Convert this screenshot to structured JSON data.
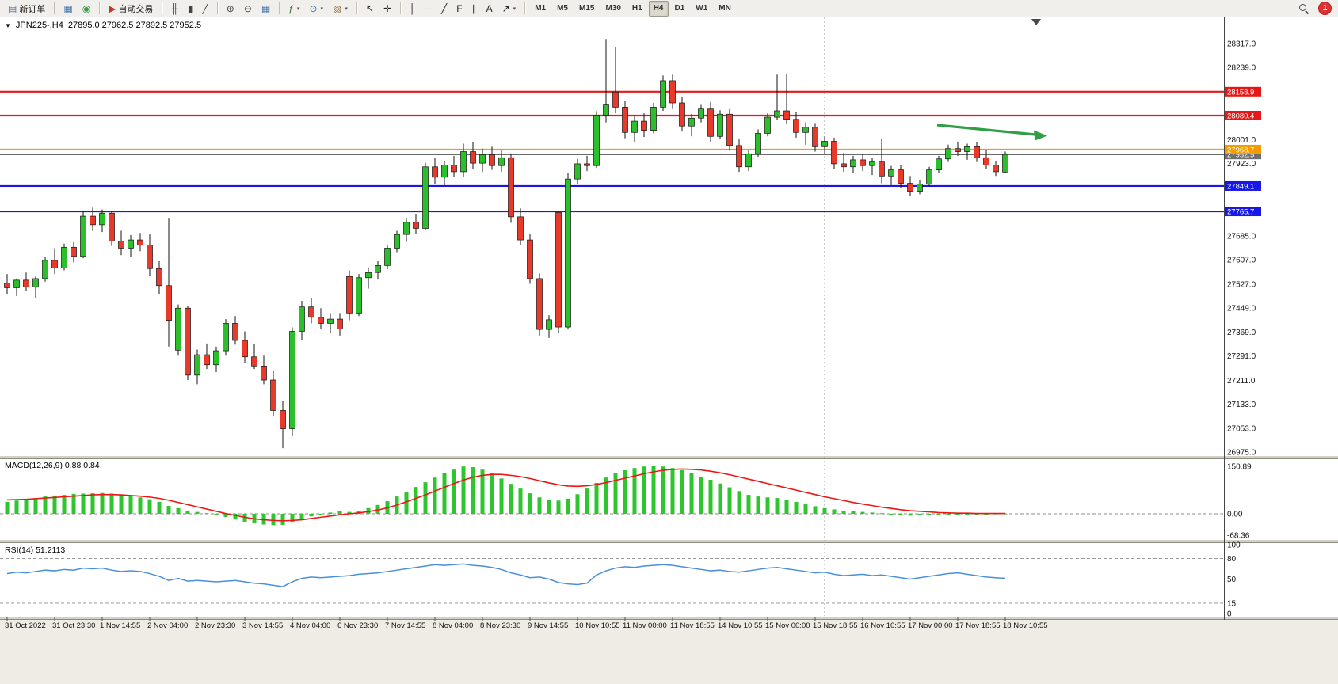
{
  "toolbar": {
    "notification_count": "1",
    "timeframes": [
      "M1",
      "M5",
      "M15",
      "M30",
      "H1",
      "H4",
      "D1",
      "W1",
      "MN"
    ],
    "active_timeframe": "H4",
    "groups": [
      {
        "name": "order-group",
        "buttons": [
          {
            "name": "new-order-button",
            "icon": "new-order-icon",
            "glyph": "▤",
            "color": "#4a76a8",
            "label": "新订单"
          }
        ]
      },
      {
        "name": "window-group",
        "buttons": [
          {
            "name": "new-chart-button",
            "icon": "chart-window-icon",
            "glyph": "▦",
            "color": "#4a76a8"
          },
          {
            "name": "profiles-button",
            "icon": "profiles-icon",
            "glyph": "◉",
            "color": "#3f9b4f"
          }
        ]
      },
      {
        "name": "trading-group",
        "buttons": [
          {
            "name": "auto-trading-button",
            "icon": "auto-trading-icon",
            "glyph": "▶",
            "color": "#c0392b",
            "label": "自动交易"
          }
        ]
      },
      {
        "name": "chart-type-group",
        "buttons": [
          {
            "name": "bar-chart-button",
            "icon": "bar-chart-icon",
            "glyph": "╫",
            "color": "#444444"
          },
          {
            "name": "candlestick-button",
            "icon": "candlestick-icon",
            "glyph": "▮",
            "color": "#444444"
          },
          {
            "name": "line-chart-button",
            "icon": "line-chart-icon",
            "glyph": "╱",
            "color": "#444444"
          }
        ]
      },
      {
        "name": "zoom-group",
        "buttons": [
          {
            "name": "zoom-in-button",
            "icon": "zoom-in-icon",
            "glyph": "⊕",
            "color": "#444444"
          },
          {
            "name": "zoom-out-button",
            "icon": "zoom-out-icon",
            "glyph": "⊖",
            "color": "#444444"
          },
          {
            "name": "tile-windows-button",
            "icon": "tile-windows-icon",
            "glyph": "▦",
            "color": "#4a76a8"
          }
        ]
      },
      {
        "name": "insert-group",
        "buttons": [
          {
            "name": "indicators-button",
            "icon": "indicators-icon",
            "glyph": "ƒ",
            "color": "#2e7d32",
            "dropdown": true
          },
          {
            "name": "periods-button",
            "icon": "periods-icon",
            "glyph": "⊙",
            "color": "#4a76a8",
            "dropdown": true
          },
          {
            "name": "templates-button",
            "icon": "templates-icon",
            "glyph": "▧",
            "color": "#8a6d3b",
            "dropdown": true
          }
        ]
      },
      {
        "name": "cursor-group",
        "buttons": [
          {
            "name": "cursor-button",
            "icon": "cursor-icon",
            "glyph": "↖",
            "color": "#222222"
          },
          {
            "name": "crosshair-button",
            "icon": "crosshair-icon",
            "glyph": "✛",
            "color": "#222222"
          }
        ]
      },
      {
        "name": "objects-group",
        "buttons": [
          {
            "name": "vertical-line-button",
            "icon": "vertical-line-icon",
            "glyph": "│",
            "color": "#222222"
          },
          {
            "name": "horizontal-line-button",
            "icon": "horizontal-line-icon",
            "glyph": "─",
            "color": "#222222"
          },
          {
            "name": "trendline-button",
            "icon": "trendline-icon",
            "glyph": "╱",
            "color": "#222222"
          },
          {
            "name": "fibonacci-button",
            "icon": "fibonacci-icon",
            "glyph": "F",
            "color": "#222222"
          },
          {
            "name": "channel-button",
            "icon": "channel-icon",
            "glyph": "∥",
            "color": "#222222"
          },
          {
            "name": "text-button",
            "icon": "text-icon",
            "glyph": "A",
            "color": "#222222"
          },
          {
            "name": "arrows-button",
            "icon": "arrow-objects-icon",
            "glyph": "↗",
            "color": "#222222",
            "dropdown": true
          }
        ]
      }
    ]
  },
  "chart": {
    "collapse_glyph": "▼",
    "symbol_period": "JPN225-,H4",
    "ohlc_text": "27895.0 27962.5 27892.5 27952.5",
    "bid_price": "27952.5",
    "hlines": [
      {
        "label": "28158.9",
        "color": "#e81717"
      },
      {
        "label": "28080.4",
        "color": "#e81717"
      },
      {
        "label": "27968.7",
        "color": "#f59b00"
      },
      {
        "label": "27849.1",
        "color": "#1717e8"
      },
      {
        "label": "27765.7",
        "color": "#1717e8"
      }
    ],
    "price_ticks": [
      "28317.0",
      "28239.0",
      "28001.0",
      "27923.0",
      "27685.0",
      "27607.0",
      "27527.0",
      "27449.0",
      "27369.0",
      "27291.0",
      "27211.0",
      "27133.0",
      "27053.0",
      "26975.0"
    ],
    "up_color": "#2bbf2b",
    "down_color": "#e8392a",
    "outline_color": "#151515",
    "bid_line_color": "#3a3a3a",
    "trend_arrow_color": "#2f9e44"
  },
  "chart_data": {
    "type": "candlestick",
    "symbol": "JPN225-",
    "timeframe": "H4",
    "y_axis_range": [
      26975.0,
      28317.0
    ],
    "x_labels": [
      "31 Oct 2022",
      "31 Oct 23:30",
      "1 Nov 14:55",
      "2 Nov 04:00",
      "2 Nov 23:30",
      "3 Nov 14:55",
      "4 Nov 04:00",
      "6 Nov 23:30",
      "7 Nov 14:55",
      "8 Nov 04:00",
      "8 Nov 23:30",
      "9 Nov 14:55",
      "10 Nov 10:55",
      "11 Nov 00:00",
      "11 Nov 18:55",
      "14 Nov 10:55",
      "15 Nov 00:00",
      "15 Nov 18:55",
      "16 Nov 10:55",
      "17 Nov 00:00",
      "17 Nov 18:55",
      "18 Nov 10:55"
    ],
    "ohlc": [
      [
        27530,
        27560,
        27495,
        27515
      ],
      [
        27515,
        27545,
        27488,
        27540
      ],
      [
        27540,
        27565,
        27505,
        27518
      ],
      [
        27518,
        27552,
        27480,
        27545
      ],
      [
        27545,
        27615,
        27535,
        27605
      ],
      [
        27605,
        27645,
        27560,
        27580
      ],
      [
        27580,
        27660,
        27572,
        27648
      ],
      [
        27648,
        27665,
        27598,
        27618
      ],
      [
        27618,
        27765,
        27612,
        27750
      ],
      [
        27750,
        27778,
        27702,
        27722
      ],
      [
        27722,
        27772,
        27698,
        27760
      ],
      [
        27760,
        27768,
        27652,
        27668
      ],
      [
        27668,
        27702,
        27622,
        27645
      ],
      [
        27645,
        27688,
        27616,
        27672
      ],
      [
        27672,
        27695,
        27635,
        27655
      ],
      [
        27655,
        27690,
        27555,
        27578
      ],
      [
        27578,
        27602,
        27495,
        27522
      ],
      [
        27522,
        27742,
        27322,
        27408
      ],
      [
        27310,
        27460,
        27292,
        27448
      ],
      [
        27448,
        27455,
        27212,
        27228
      ],
      [
        27228,
        27312,
        27198,
        27295
      ],
      [
        27295,
        27332,
        27248,
        27262
      ],
      [
        27262,
        27322,
        27238,
        27308
      ],
      [
        27308,
        27412,
        27292,
        27398
      ],
      [
        27398,
        27422,
        27328,
        27342
      ],
      [
        27342,
        27372,
        27268,
        27288
      ],
      [
        27288,
        27330,
        27248,
        27258
      ],
      [
        27258,
        27292,
        27198,
        27212
      ],
      [
        27212,
        27242,
        27092,
        27112
      ],
      [
        27112,
        27142,
        26988,
        27052
      ],
      [
        27052,
        27385,
        27028,
        27372
      ],
      [
        27372,
        27472,
        27342,
        27452
      ],
      [
        27452,
        27482,
        27398,
        27418
      ],
      [
        27418,
        27448,
        27378,
        27398
      ],
      [
        27398,
        27432,
        27368,
        27412
      ],
      [
        27412,
        27432,
        27358,
        27380
      ],
      [
        27552,
        27572,
        27408,
        27432
      ],
      [
        27432,
        27560,
        27422,
        27548
      ],
      [
        27548,
        27582,
        27512,
        27565
      ],
      [
        27565,
        27602,
        27542,
        27588
      ],
      [
        27588,
        27655,
        27576,
        27645
      ],
      [
        27645,
        27702,
        27632,
        27690
      ],
      [
        27690,
        27742,
        27665,
        27730
      ],
      [
        27730,
        27758,
        27692,
        27710
      ],
      [
        27710,
        27925,
        27705,
        27912
      ],
      [
        27912,
        27942,
        27855,
        27878
      ],
      [
        27878,
        27932,
        27850,
        27918
      ],
      [
        27918,
        27948,
        27880,
        27896
      ],
      [
        27896,
        27988,
        27878,
        27962
      ],
      [
        27962,
        27992,
        27906,
        27924
      ],
      [
        27924,
        27972,
        27895,
        27952
      ],
      [
        27952,
        27978,
        27902,
        27916
      ],
      [
        27916,
        27968,
        27896,
        27942
      ],
      [
        27942,
        27956,
        27728,
        27748
      ],
      [
        27748,
        27776,
        27655,
        27672
      ],
      [
        27672,
        27692,
        27528,
        27545
      ],
      [
        27545,
        27562,
        27358,
        27378
      ],
      [
        27378,
        27425,
        27350,
        27410
      ],
      [
        27762,
        27768,
        27368,
        27386
      ],
      [
        27386,
        27892,
        27378,
        27872
      ],
      [
        27872,
        27938,
        27856,
        27922
      ],
      [
        27922,
        27948,
        27898,
        27916
      ],
      [
        27916,
        28095,
        27908,
        28082
      ],
      [
        28082,
        28332,
        28058,
        28118
      ],
      [
        28158,
        28305,
        28088,
        28108
      ],
      [
        28108,
        28128,
        28006,
        28025
      ],
      [
        28025,
        28078,
        27995,
        28062
      ],
      [
        28062,
        28088,
        28010,
        28032
      ],
      [
        28032,
        28122,
        28022,
        28108
      ],
      [
        28108,
        28212,
        28096,
        28195
      ],
      [
        28195,
        28215,
        28102,
        28122
      ],
      [
        28122,
        28142,
        28028,
        28046
      ],
      [
        28046,
        28086,
        28012,
        28072
      ],
      [
        28072,
        28118,
        28058,
        28102
      ],
      [
        28102,
        28125,
        27992,
        28012
      ],
      [
        28012,
        28098,
        28002,
        28085
      ],
      [
        28085,
        28102,
        27965,
        27982
      ],
      [
        27982,
        28002,
        27895,
        27912
      ],
      [
        27912,
        27968,
        27898,
        27955
      ],
      [
        27955,
        28035,
        27945,
        28022
      ],
      [
        28022,
        28088,
        28012,
        28075
      ],
      [
        28075,
        28215,
        28065,
        28096
      ],
      [
        28096,
        28218,
        28052,
        28068
      ],
      [
        28068,
        28092,
        28008,
        28025
      ],
      [
        28025,
        28058,
        27985,
        28042
      ],
      [
        28042,
        28056,
        27962,
        27978
      ],
      [
        27978,
        28012,
        27952,
        27996
      ],
      [
        27996,
        28008,
        27905,
        27922
      ],
      [
        27922,
        27958,
        27895,
        27912
      ],
      [
        27912,
        27948,
        27892,
        27935
      ],
      [
        27935,
        27952,
        27898,
        27916
      ],
      [
        27916,
        27942,
        27885,
        27928
      ],
      [
        27928,
        28005,
        27858,
        27882
      ],
      [
        27882,
        27915,
        27852,
        27902
      ],
      [
        27902,
        27918,
        27842,
        27858
      ],
      [
        27858,
        27882,
        27815,
        27832
      ],
      [
        27832,
        27868,
        27822,
        27855
      ],
      [
        27855,
        27912,
        27848,
        27902
      ],
      [
        27902,
        27948,
        27892,
        27938
      ],
      [
        27938,
        27985,
        27928,
        27972
      ],
      [
        27972,
        27995,
        27948,
        27962
      ],
      [
        27962,
        27988,
        27935,
        27978
      ],
      [
        27978,
        27992,
        27928,
        27942
      ],
      [
        27942,
        27968,
        27905,
        27918
      ],
      [
        27918,
        27932,
        27882,
        27896
      ],
      [
        27895,
        27962.5,
        27892.5,
        27952.5
      ]
    ]
  },
  "indicators": {
    "macd": {
      "label": "MACD(12,26,9) 0.88 0.84",
      "axis_labels": [
        "150.89",
        "0.00",
        "-68.36"
      ],
      "histogram_color": "#2fc52f",
      "signal_color": "#f01515",
      "histogram": [
        38,
        42,
        45,
        50,
        55,
        58,
        60,
        63,
        64,
        65,
        66,
        64,
        60,
        56,
        52,
        46,
        38,
        25,
        18,
        10,
        6,
        2,
        -4,
        -10,
        -18,
        -25,
        -30,
        -34,
        -36,
        -35,
        -28,
        -18,
        -8,
        -2,
        4,
        8,
        6,
        10,
        18,
        28,
        40,
        55,
        70,
        85,
        100,
        115,
        128,
        140,
        150,
        148,
        140,
        128,
        112,
        95,
        80,
        65,
        52,
        45,
        42,
        48,
        62,
        80,
        98,
        115,
        128,
        138,
        145,
        150,
        151,
        150,
        145,
        138,
        128,
        118,
        108,
        96,
        84,
        72,
        60,
        55,
        52,
        50,
        45,
        38,
        30,
        24,
        18,
        14,
        10,
        8,
        6,
        4,
        2,
        -2,
        -4,
        -6,
        -5,
        -4,
        -3,
        -2,
        -3,
        -4,
        -3,
        -2,
        1,
        1
      ],
      "signal": [
        44,
        45,
        46,
        48,
        50,
        52,
        54,
        56,
        58,
        60,
        61,
        61,
        60,
        58,
        56,
        53,
        49,
        43,
        36,
        29,
        22,
        15,
        8,
        1,
        -5,
        -11,
        -16,
        -19,
        -21,
        -22,
        -21,
        -19,
        -15,
        -11,
        -7,
        -3,
        0,
        3,
        7,
        12,
        19,
        28,
        38,
        49,
        60,
        72,
        84,
        96,
        107,
        116,
        122,
        125,
        125,
        122,
        118,
        112,
        105,
        98,
        92,
        88,
        87,
        89,
        93,
        99,
        106,
        113,
        120,
        127,
        133,
        138,
        141,
        142,
        141,
        139,
        135,
        130,
        124,
        117,
        110,
        103,
        96,
        89,
        82,
        75,
        68,
        61,
        54,
        48,
        42,
        36,
        31,
        26,
        21,
        17,
        13,
        10,
        8,
        6,
        4,
        3,
        2,
        2,
        1,
        1,
        1,
        1
      ]
    },
    "rsi": {
      "label": "RSI(14) 51.2113",
      "axis_labels": [
        "100",
        "80",
        "50",
        "15",
        "0"
      ],
      "dashed_levels": [
        80,
        50,
        15
      ],
      "line_color": "#4a90d9",
      "values": [
        58,
        60,
        59,
        61,
        63,
        62,
        64,
        63,
        66,
        65,
        66,
        63,
        61,
        62,
        61,
        58,
        54,
        48,
        51,
        47,
        48,
        47,
        46,
        47,
        48,
        46,
        44,
        43,
        41,
        39,
        46,
        51,
        53,
        52,
        53,
        54,
        55,
        57,
        58,
        59,
        61,
        63,
        65,
        67,
        69,
        71,
        70,
        71,
        72,
        70,
        69,
        67,
        64,
        59,
        56,
        52,
        53,
        50,
        45,
        43,
        42,
        44,
        56,
        62,
        66,
        68,
        67,
        69,
        70,
        71,
        70,
        68,
        66,
        64,
        62,
        63,
        61,
        60,
        62,
        64,
        66,
        67,
        65,
        63,
        61,
        59,
        60,
        57,
        55,
        56,
        57,
        55,
        56,
        54,
        52,
        50,
        52,
        54,
        56,
        58,
        59,
        57,
        55,
        53,
        52,
        51.21
      ]
    }
  }
}
